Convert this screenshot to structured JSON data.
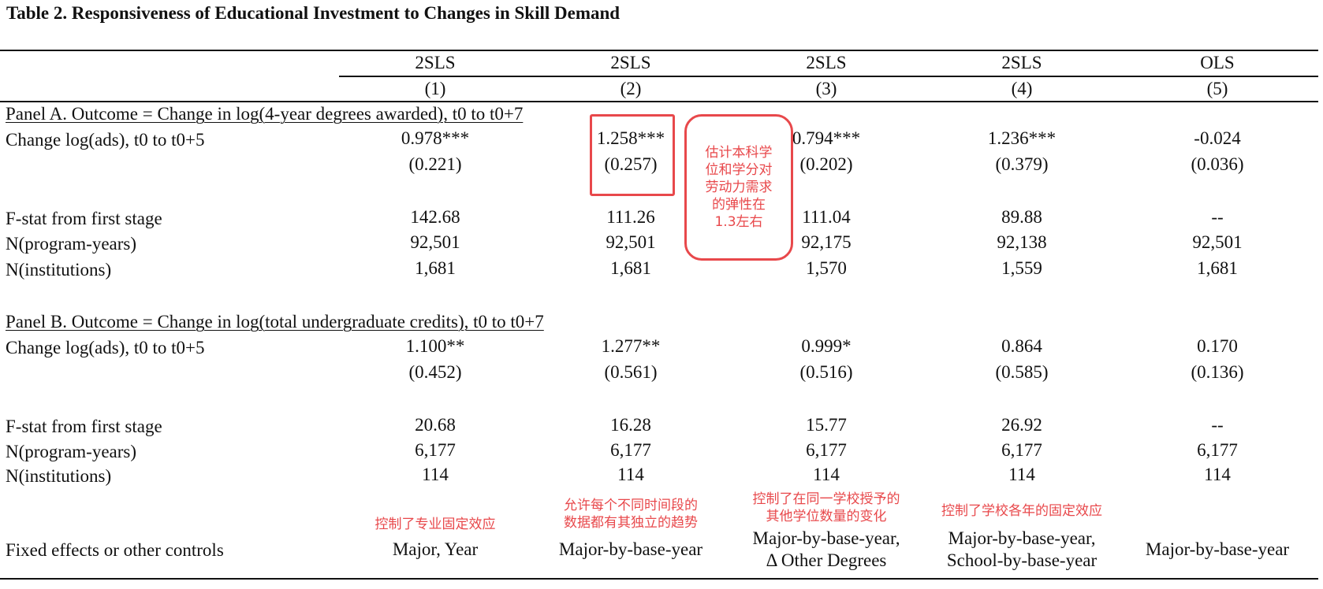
{
  "title": "Table 2. Responsiveness of Educational Investment to Changes in Skill Demand",
  "columns": [
    {
      "method": "2SLS",
      "num": "(1)"
    },
    {
      "method": "2SLS",
      "num": "(2)"
    },
    {
      "method": "2SLS",
      "num": "(3)"
    },
    {
      "method": "2SLS",
      "num": "(4)"
    },
    {
      "method": "OLS",
      "num": "(5)"
    }
  ],
  "panel_a": {
    "heading": "Panel A. Outcome = Change in log(4-year degrees awarded), t0 to t0+7",
    "rows": [
      {
        "label": "Change log(ads), t0 to t0+5",
        "values": [
          "0.978***",
          "1.258***",
          "0.794***",
          "1.236***",
          "-0.024"
        ]
      },
      {
        "label": "",
        "values": [
          "(0.221)",
          "(0.257)",
          "(0.202)",
          "(0.379)",
          "(0.036)"
        ]
      },
      {
        "label": "F-stat from first stage",
        "values": [
          "142.68",
          "111.26",
          "111.04",
          "89.88",
          "--"
        ]
      },
      {
        "label": "N(program-years)",
        "values": [
          "92,501",
          "92,501",
          "92,175",
          "92,138",
          "92,501"
        ]
      },
      {
        "label": "N(institutions)",
        "values": [
          "1,681",
          "1,681",
          "1,570",
          "1,559",
          "1,681"
        ]
      }
    ]
  },
  "panel_b": {
    "heading": "Panel B. Outcome = Change in log(total undergraduate credits), t0 to t0+7",
    "rows": [
      {
        "label": "Change log(ads), t0 to t0+5",
        "values": [
          "1.100**",
          "1.277**",
          "0.999*",
          "0.864",
          "0.170"
        ]
      },
      {
        "label": "",
        "values": [
          "(0.452)",
          "(0.561)",
          "(0.516)",
          "(0.585)",
          "(0.136)"
        ]
      },
      {
        "label": "F-stat from first stage",
        "values": [
          "20.68",
          "16.28",
          "15.77",
          "26.92",
          "--"
        ]
      },
      {
        "label": "N(program-years)",
        "values": [
          "6,177",
          "6,177",
          "6,177",
          "6,177",
          "6,177"
        ]
      },
      {
        "label": "N(institutions)",
        "values": [
          "114",
          "114",
          "114",
          "114",
          "114"
        ]
      }
    ]
  },
  "controls": {
    "label": "Fixed effects or other controls",
    "values": [
      [
        "Major, Year"
      ],
      [
        "Major-by-base-year"
      ],
      [
        "Major-by-base-year,",
        "Δ Other Degrees"
      ],
      [
        "Major-by-base-year,",
        "School-by-base-year"
      ],
      [
        "Major-by-base-year"
      ]
    ]
  },
  "annotations": {
    "bubble": "估计本科学位和学分对劳动力需求的弹性在1.3左右",
    "col1": "控制了专业固定效应",
    "col2": [
      "允许每个不同时间段的",
      "数据都有其独立的趋势"
    ],
    "col3": [
      "控制了在同一学校授予的",
      "其他学位数量的变化"
    ],
    "col4": "控制了学校各年的固定效应",
    "color": "#e8484b"
  }
}
